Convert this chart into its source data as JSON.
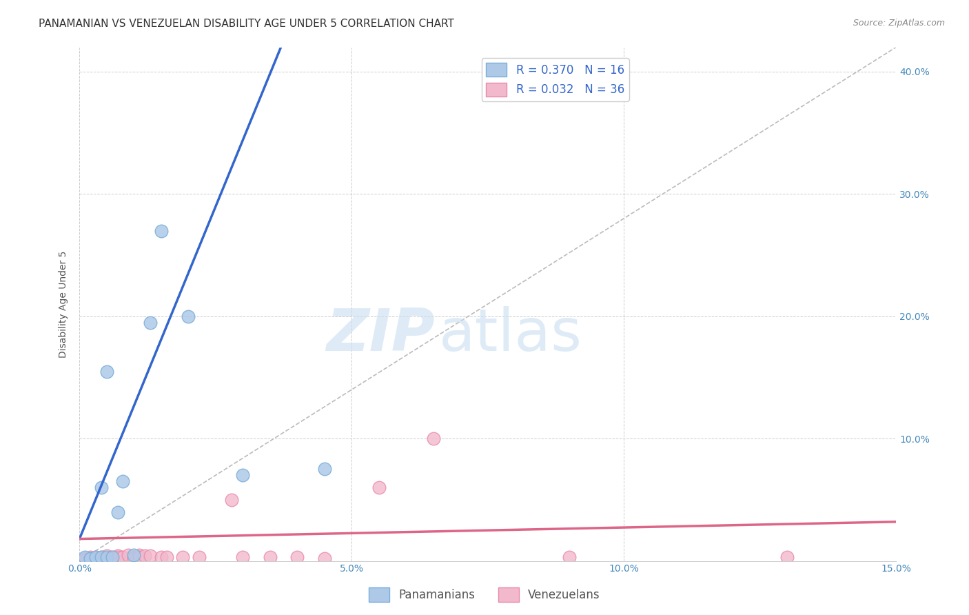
{
  "title": "PANAMANIAN VS VENEZUELAN DISABILITY AGE UNDER 5 CORRELATION CHART",
  "source": "Source: ZipAtlas.com",
  "ylabel": "Disability Age Under 5",
  "xlim": [
    0.0,
    0.15
  ],
  "ylim": [
    0.0,
    0.42
  ],
  "xticks": [
    0.0,
    0.05,
    0.1,
    0.15
  ],
  "xtick_labels": [
    "0.0%",
    "5.0%",
    "10.0%",
    "15.0%"
  ],
  "yticks": [
    0.0,
    0.1,
    0.2,
    0.3,
    0.4
  ],
  "ytick_labels_right": [
    "",
    "10.0%",
    "20.0%",
    "30.0%",
    "40.0%"
  ],
  "background_color": "#ffffff",
  "grid_color": "#cccccc",
  "watermark_zip": "ZIP",
  "watermark_atlas": "atlas",
  "panama_color": "#aec9e8",
  "panama_edge_color": "#7aaed8",
  "venezuela_color": "#f2b8cc",
  "venezuela_edge_color": "#e88aaa",
  "panama_R": 0.37,
  "panama_N": 16,
  "venezuela_R": 0.032,
  "venezuela_N": 36,
  "panama_line_color": "#3366cc",
  "venezuela_line_color": "#dd6688",
  "diagonal_color": "#bbbbbb",
  "panama_x": [
    0.001,
    0.002,
    0.003,
    0.004,
    0.004,
    0.005,
    0.005,
    0.006,
    0.007,
    0.008,
    0.01,
    0.013,
    0.015,
    0.02,
    0.03,
    0.045
  ],
  "panama_y": [
    0.003,
    0.002,
    0.003,
    0.003,
    0.06,
    0.003,
    0.155,
    0.003,
    0.04,
    0.065,
    0.005,
    0.195,
    0.27,
    0.2,
    0.07,
    0.075
  ],
  "venezuela_x": [
    0.001,
    0.001,
    0.002,
    0.002,
    0.002,
    0.003,
    0.003,
    0.004,
    0.004,
    0.005,
    0.005,
    0.006,
    0.006,
    0.007,
    0.007,
    0.008,
    0.009,
    0.01,
    0.01,
    0.011,
    0.011,
    0.012,
    0.013,
    0.015,
    0.016,
    0.019,
    0.022,
    0.028,
    0.03,
    0.035,
    0.04,
    0.045,
    0.055,
    0.065,
    0.09,
    0.13
  ],
  "venezuela_y": [
    0.002,
    0.001,
    0.003,
    0.002,
    0.001,
    0.003,
    0.002,
    0.003,
    0.002,
    0.004,
    0.002,
    0.003,
    0.002,
    0.004,
    0.003,
    0.003,
    0.005,
    0.003,
    0.002,
    0.005,
    0.003,
    0.004,
    0.004,
    0.003,
    0.003,
    0.003,
    0.003,
    0.05,
    0.003,
    0.003,
    0.003,
    0.002,
    0.06,
    0.1,
    0.003,
    0.003
  ],
  "title_fontsize": 11,
  "axis_label_fontsize": 10,
  "tick_fontsize": 10,
  "legend_fontsize": 12,
  "source_fontsize": 9,
  "panama_line_x_end": 0.037
}
